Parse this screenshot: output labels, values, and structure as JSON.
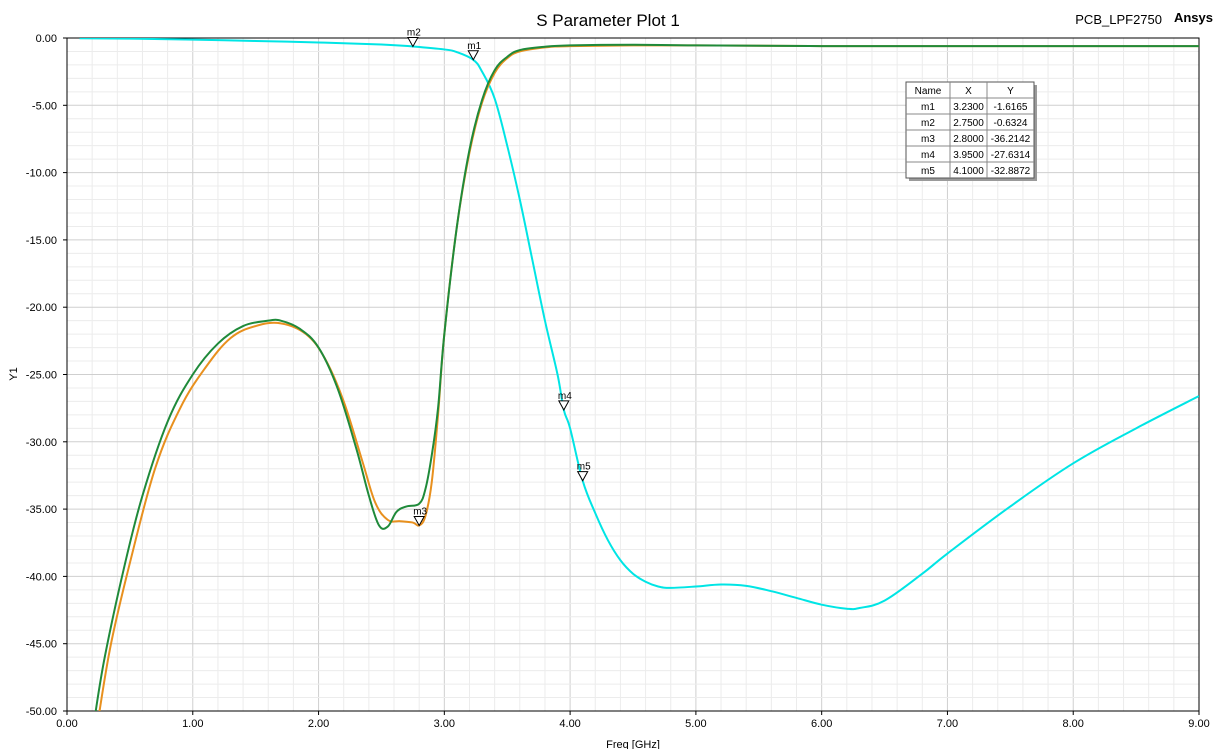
{
  "chart_data": {
    "type": "line",
    "title": "S Parameter Plot 1",
    "project_label": "PCB_LPF2750",
    "brand": "Ansys",
    "xlabel": "Freq [GHz]",
    "ylabel": "Y1",
    "xlim": [
      0,
      9
    ],
    "ylim": [
      -50,
      0
    ],
    "x_ticks": [
      "0.00",
      "1.00",
      "2.00",
      "3.00",
      "4.00",
      "5.00",
      "6.00",
      "7.00",
      "8.00",
      "9.00"
    ],
    "y_ticks": [
      "0.00",
      "-5.00",
      "-10.00",
      "-15.00",
      "-20.00",
      "-25.00",
      "-30.00",
      "-35.00",
      "-40.00",
      "-45.00",
      "-50.00"
    ],
    "grid": true,
    "series": [
      {
        "color": "#00e5e5",
        "x": [
          0.1,
          0.5,
          1.0,
          1.5,
          2.0,
          2.5,
          2.75,
          3.0,
          3.1,
          3.23,
          3.3,
          3.4,
          3.5,
          3.6,
          3.7,
          3.8,
          3.9,
          3.95,
          4.0,
          4.1,
          4.2,
          4.3,
          4.4,
          4.5,
          4.6,
          4.7,
          4.8,
          5.0,
          5.2,
          5.4,
          5.6,
          5.8,
          6.0,
          6.2,
          6.3,
          6.5,
          6.8,
          7.0,
          7.5,
          8.0,
          8.5,
          9.0
        ],
        "y": [
          -0.02,
          -0.05,
          -0.12,
          -0.22,
          -0.33,
          -0.48,
          -0.63,
          -0.85,
          -1.05,
          -1.62,
          -2.5,
          -4.5,
          -8.0,
          -12.0,
          -16.5,
          -21.0,
          -25.0,
          -27.63,
          -29.0,
          -32.89,
          -35.3,
          -37.3,
          -38.8,
          -39.8,
          -40.4,
          -40.75,
          -40.85,
          -40.75,
          -40.6,
          -40.7,
          -41.1,
          -41.6,
          -42.1,
          -42.4,
          -42.35,
          -41.8,
          -39.8,
          -38.3,
          -34.8,
          -31.6,
          -29.0,
          -26.6
        ]
      },
      {
        "color": "#e8901e",
        "x": [
          0.25,
          0.35,
          0.5,
          0.7,
          0.9,
          1.1,
          1.3,
          1.5,
          1.7,
          1.9,
          2.05,
          2.2,
          2.35,
          2.45,
          2.55,
          2.65,
          2.75,
          2.8,
          2.85,
          2.9,
          2.95,
          3.0,
          3.1,
          3.2,
          3.3,
          3.4,
          3.5,
          3.6,
          3.8,
          4.0,
          4.5,
          5.0,
          6.0,
          7.0,
          8.0,
          9.0
        ],
        "y": [
          -50.5,
          -45.0,
          -39.0,
          -32.0,
          -27.5,
          -24.5,
          -22.3,
          -21.4,
          -21.2,
          -22.0,
          -23.8,
          -27.0,
          -31.5,
          -34.5,
          -35.8,
          -35.9,
          -36.0,
          -36.21,
          -35.5,
          -33.0,
          -28.0,
          -22.0,
          -14.0,
          -8.5,
          -4.8,
          -2.6,
          -1.5,
          -1.0,
          -0.7,
          -0.6,
          -0.55,
          -0.55,
          -0.6,
          -0.6,
          -0.6,
          -0.6
        ]
      },
      {
        "color": "#1f8a3a",
        "x": [
          0.22,
          0.3,
          0.45,
          0.6,
          0.8,
          1.0,
          1.2,
          1.4,
          1.6,
          1.7,
          1.85,
          2.0,
          2.15,
          2.3,
          2.4,
          2.48,
          2.55,
          2.62,
          2.7,
          2.8,
          2.85,
          2.9,
          2.95,
          3.0,
          3.1,
          3.2,
          3.3,
          3.4,
          3.5,
          3.6,
          3.8,
          4.0,
          4.5,
          5.0,
          6.0,
          7.0,
          8.0,
          9.0
        ],
        "y": [
          -50.5,
          -46.0,
          -39.5,
          -34.0,
          -28.5,
          -25.0,
          -22.7,
          -21.4,
          -21.0,
          -21.0,
          -21.6,
          -23.0,
          -26.0,
          -30.5,
          -34.0,
          -36.2,
          -36.3,
          -35.2,
          -34.8,
          -34.6,
          -33.5,
          -31.0,
          -27.5,
          -22.0,
          -14.0,
          -8.3,
          -4.6,
          -2.4,
          -1.4,
          -0.9,
          -0.65,
          -0.55,
          -0.5,
          -0.55,
          -0.6,
          -0.6,
          -0.6,
          -0.6
        ]
      }
    ],
    "markers": [
      {
        "name": "m1",
        "x": 3.23,
        "y": -1.6165
      },
      {
        "name": "m2",
        "x": 2.75,
        "y": -0.6324
      },
      {
        "name": "m3",
        "x": 2.8,
        "y": -36.2142
      },
      {
        "name": "m4",
        "x": 3.95,
        "y": -27.6314
      },
      {
        "name": "m5",
        "x": 4.1,
        "y": -32.8872
      }
    ],
    "marker_table": {
      "headers": [
        "Name",
        "X",
        "Y"
      ],
      "rows": [
        [
          "m1",
          "3.2300",
          "-1.6165"
        ],
        [
          "m2",
          "2.7500",
          "-0.6324"
        ],
        [
          "m3",
          "2.8000",
          "-36.2142"
        ],
        [
          "m4",
          "3.9500",
          "-27.6314"
        ],
        [
          "m5",
          "4.1000",
          "-32.8872"
        ]
      ]
    }
  }
}
